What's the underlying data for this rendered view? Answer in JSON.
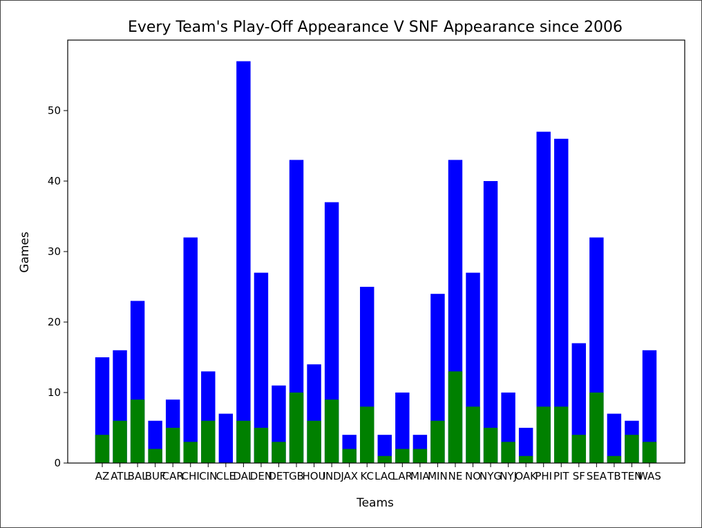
{
  "chart_data": {
    "type": "bar",
    "title": "Every Team's Play-Off Appearance V SNF Appearance since 2006",
    "xlabel": "Teams",
    "ylabel": "Games",
    "ylim": [
      0,
      60
    ],
    "yticks": [
      0,
      10,
      20,
      30,
      40,
      50
    ],
    "grid": false,
    "categories": [
      "AZ",
      "ATL",
      "BAL",
      "BUF",
      "CAR",
      "CHI",
      "CIN",
      "CLE",
      "DAL",
      "DEN",
      "DET",
      "GB",
      "HOU",
      "IND",
      "JAX",
      "KC",
      "LAC",
      "LAR",
      "MIA",
      "MIN",
      "NE",
      "NO",
      "NYG",
      "NYJ",
      "OAK",
      "PHI",
      "PIT",
      "SF",
      "SEA",
      "TB",
      "TEN",
      "WAS"
    ],
    "series": [
      {
        "color": "#0000ff",
        "values": [
          15,
          16,
          23,
          6,
          9,
          32,
          13,
          7,
          57,
          27,
          11,
          43,
          14,
          37,
          4,
          25,
          4,
          10,
          4,
          24,
          43,
          27,
          40,
          10,
          5,
          47,
          46,
          17,
          32,
          7,
          6,
          16
        ]
      },
      {
        "color": "#008000",
        "values": [
          4,
          6,
          9,
          2,
          5,
          3,
          6,
          0,
          6,
          5,
          3,
          10,
          6,
          9,
          2,
          8,
          1,
          2,
          2,
          6,
          13,
          8,
          5,
          3,
          1,
          8,
          8,
          4,
          10,
          1,
          4,
          3
        ]
      }
    ]
  }
}
